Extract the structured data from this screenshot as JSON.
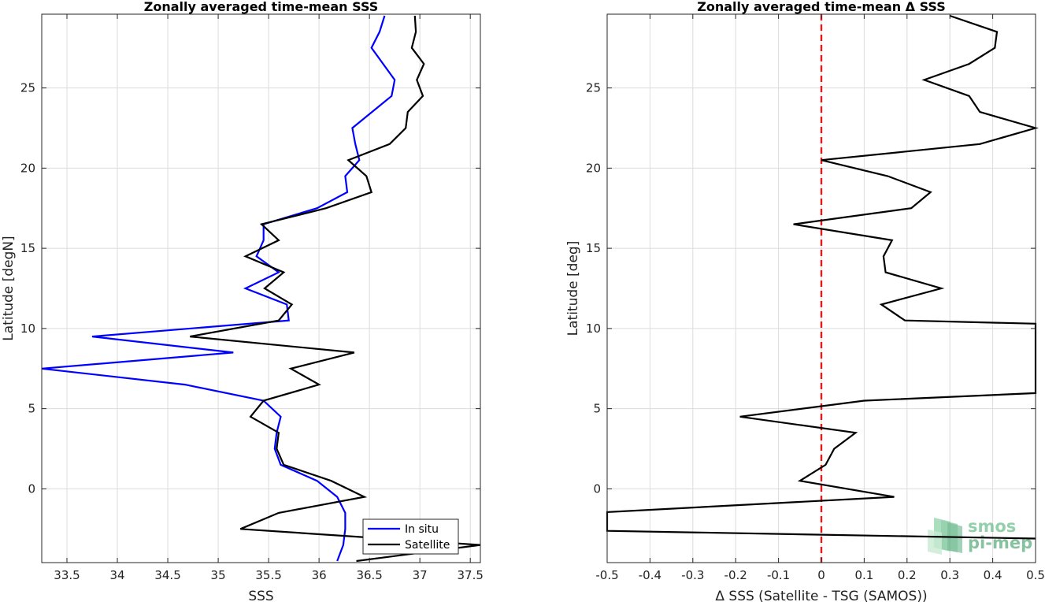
{
  "chart_data": [
    {
      "type": "line",
      "title": "Zonally averaged time-mean SSS",
      "xlabel": "SSS",
      "ylabel": "Latitude [degN]",
      "xlim": [
        33.25,
        37.6
      ],
      "ylim": [
        -4.6,
        29.6
      ],
      "xticks": [
        33.5,
        34,
        34.5,
        35,
        35.5,
        36,
        36.5,
        37,
        37.5
      ],
      "xtick_labels": [
        "33.5",
        "34",
        "34.5",
        "35",
        "35.5",
        "36",
        "36.5",
        "37",
        "37.5"
      ],
      "yticks": [
        0,
        5,
        10,
        15,
        20,
        25
      ],
      "ytick_labels": [
        "0",
        "5",
        "10",
        "15",
        "20",
        "25"
      ],
      "grid": true,
      "legend": "bottom-right",
      "series": [
        {
          "name": "In situ",
          "color": "#0000ff",
          "points": [
            [
              36.65,
              29.5
            ],
            [
              36.6,
              28.5
            ],
            [
              36.52,
              27.5
            ],
            [
              36.75,
              25.5
            ],
            [
              36.72,
              24.5
            ],
            [
              36.33,
              22.5
            ],
            [
              36.36,
              21.5
            ],
            [
              36.4,
              20.5
            ],
            [
              36.26,
              19.5
            ],
            [
              36.28,
              18.5
            ],
            [
              35.98,
              17.5
            ],
            [
              35.45,
              16.5
            ],
            [
              35.45,
              15.5
            ],
            [
              35.38,
              14.5
            ],
            [
              35.6,
              13.5
            ],
            [
              35.27,
              12.5
            ],
            [
              35.68,
              11.5
            ],
            [
              35.7,
              10.5
            ],
            [
              33.75,
              9.5
            ],
            [
              35.15,
              8.5
            ],
            [
              33.25,
              7.5
            ],
            [
              34.67,
              6.5
            ],
            [
              35.45,
              5.5
            ],
            [
              35.62,
              4.5
            ],
            [
              35.58,
              3.5
            ],
            [
              35.56,
              2.5
            ],
            [
              35.62,
              1.5
            ],
            [
              35.98,
              0.5
            ],
            [
              36.18,
              -0.5
            ],
            [
              36.26,
              -1.5
            ],
            [
              36.26,
              -2.5
            ],
            [
              36.24,
              -3.5
            ],
            [
              36.18,
              -4.5
            ]
          ]
        },
        {
          "name": "Satellite",
          "color": "#000000",
          "points": [
            [
              36.95,
              29.5
            ],
            [
              36.96,
              28.5
            ],
            [
              36.92,
              27.5
            ],
            [
              37.04,
              26.5
            ],
            [
              36.97,
              25.5
            ],
            [
              37.03,
              24.5
            ],
            [
              36.88,
              23.5
            ],
            [
              36.86,
              22.5
            ],
            [
              36.7,
              21.5
            ],
            [
              36.29,
              20.5
            ],
            [
              36.47,
              19.5
            ],
            [
              36.52,
              18.5
            ],
            [
              36.07,
              17.5
            ],
            [
              35.43,
              16.5
            ],
            [
              35.6,
              15.5
            ],
            [
              35.27,
              14.5
            ],
            [
              35.65,
              13.5
            ],
            [
              35.46,
              12.5
            ],
            [
              35.73,
              11.5
            ],
            [
              35.6,
              10.5
            ],
            [
              34.72,
              9.5
            ],
            [
              36.35,
              8.5
            ],
            [
              35.72,
              7.5
            ],
            [
              36.0,
              6.5
            ],
            [
              35.45,
              5.5
            ],
            [
              35.32,
              4.5
            ],
            [
              35.6,
              3.5
            ],
            [
              35.58,
              2.5
            ],
            [
              35.65,
              1.5
            ],
            [
              36.12,
              0.5
            ],
            [
              36.45,
              -0.5
            ],
            [
              35.6,
              -1.5
            ],
            [
              35.22,
              -2.5
            ],
            [
              37.6,
              -3.5
            ],
            [
              36.37,
              -4.5
            ]
          ]
        }
      ]
    },
    {
      "type": "line",
      "title": "Zonally averaged time-mean Δ SSS",
      "xlabel": "Δ SSS (Satellite - TSG (SAMOS))",
      "ylabel": "Latitude [deg]",
      "xlim": [
        -0.5,
        0.5
      ],
      "ylim": [
        -4.6,
        29.6
      ],
      "xticks": [
        -0.5,
        -0.4,
        -0.3,
        -0.2,
        -0.1,
        0,
        0.1,
        0.2,
        0.3,
        0.4,
        0.5
      ],
      "xtick_labels": [
        "-0.5",
        "-0.4",
        "-0.3",
        "-0.2",
        "-0.1",
        "0",
        "0.1",
        "0.2",
        "0.3",
        "0.4",
        "0.5"
      ],
      "yticks": [
        0,
        5,
        10,
        15,
        20,
        25
      ],
      "ytick_labels": [
        "0",
        "5",
        "10",
        "15",
        "20",
        "25"
      ],
      "grid": true,
      "reference_line": {
        "x": 0,
        "color": "#e31a1c",
        "style": "dashed"
      },
      "series": [
        {
          "color": "#000000",
          "points": [
            [
              0.3,
              29.5
            ],
            [
              0.41,
              28.5
            ],
            [
              0.405,
              27.5
            ],
            [
              0.345,
              26.5
            ],
            [
              0.24,
              25.5
            ],
            [
              0.345,
              24.5
            ],
            [
              0.37,
              23.5
            ],
            [
              0.5,
              22.5
            ],
            [
              0.37,
              21.5
            ],
            [
              0.0,
              20.5
            ],
            [
              0.155,
              19.5
            ],
            [
              0.255,
              18.5
            ],
            [
              0.21,
              17.5
            ],
            [
              -0.065,
              16.5
            ],
            [
              0.165,
              15.5
            ],
            [
              0.145,
              14.5
            ],
            [
              0.15,
              13.5
            ],
            [
              0.28,
              12.5
            ],
            [
              0.14,
              11.5
            ],
            [
              0.195,
              10.5
            ],
            [
              0.5,
              10.3
            ],
            [
              0.5,
              5.97
            ],
            [
              0.1,
              5.5
            ],
            [
              -0.19,
              4.5
            ],
            [
              0.08,
              3.5
            ],
            [
              0.03,
              2.5
            ],
            [
              0.01,
              1.5
            ],
            [
              -0.05,
              0.5
            ],
            [
              0.17,
              -0.5
            ],
            [
              -0.5,
              -1.45
            ],
            [
              -0.5,
              -2.62
            ],
            [
              0.5,
              -3.1
            ]
          ]
        }
      ]
    }
  ],
  "logo": {
    "line1": "smos",
    "line2": "pi-mep",
    "color": "#6fbf8f"
  }
}
